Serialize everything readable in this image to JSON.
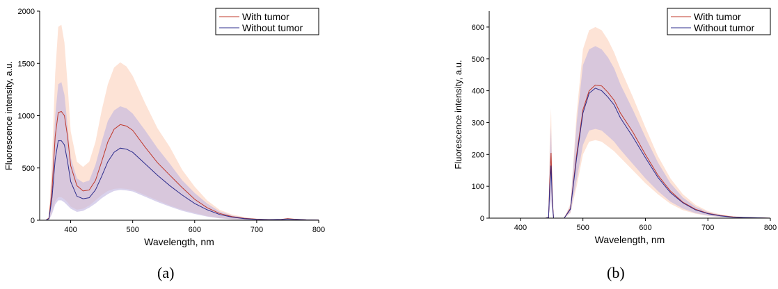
{
  "chart_data": [
    {
      "type": "line",
      "panel_label": "(a)",
      "xlabel": "Wavelength, nm",
      "ylabel": "Fluorescence intensity, a.u.",
      "xlim": [
        350,
        800
      ],
      "ylim": [
        0,
        2000
      ],
      "xticks": [
        400,
        500,
        600,
        700,
        800
      ],
      "yticks": [
        0,
        500,
        1000,
        1500,
        2000
      ],
      "grid": false,
      "legend_position": "top-right",
      "series": [
        {
          "name": "With tumor",
          "color": "#c0392b",
          "band_color": "#fcd9c8",
          "x": [
            350,
            360,
            365,
            370,
            375,
            380,
            385,
            390,
            395,
            400,
            410,
            420,
            430,
            440,
            450,
            460,
            470,
            480,
            490,
            500,
            520,
            540,
            560,
            580,
            600,
            620,
            640,
            660,
            680,
            700,
            720,
            740,
            750,
            760,
            780,
            800
          ],
          "y": [
            0,
            0,
            20,
            300,
            800,
            1030,
            1040,
            1000,
            800,
            520,
            330,
            280,
            290,
            380,
            560,
            750,
            870,
            915,
            900,
            860,
            700,
            550,
            430,
            310,
            200,
            120,
            65,
            35,
            18,
            10,
            6,
            8,
            15,
            10,
            4,
            2
          ],
          "upper": [
            0,
            0,
            40,
            600,
            1400,
            1850,
            1870,
            1700,
            1300,
            850,
            560,
            510,
            560,
            750,
            1050,
            1300,
            1460,
            1510,
            1470,
            1380,
            1120,
            880,
            700,
            480,
            320,
            190,
            100,
            55,
            30,
            15,
            10,
            12,
            22,
            15,
            6,
            3
          ],
          "lower": [
            0,
            0,
            5,
            80,
            180,
            220,
            220,
            200,
            170,
            130,
            100,
            110,
            140,
            190,
            240,
            280,
            300,
            305,
            300,
            290,
            240,
            190,
            140,
            100,
            70,
            40,
            20,
            10,
            5,
            3,
            2,
            3,
            6,
            4,
            1,
            0
          ]
        },
        {
          "name": "Without tumor",
          "color": "#2c2c8c",
          "band_color": "#bfb4e0",
          "x": [
            350,
            360,
            365,
            370,
            375,
            380,
            385,
            390,
            395,
            400,
            410,
            420,
            430,
            440,
            450,
            460,
            470,
            480,
            490,
            500,
            520,
            540,
            560,
            580,
            600,
            620,
            640,
            660,
            680,
            700,
            720,
            740,
            750,
            760,
            780,
            800
          ],
          "y": [
            0,
            0,
            15,
            220,
            580,
            760,
            760,
            720,
            560,
            370,
            230,
            205,
            215,
            290,
            420,
            560,
            650,
            690,
            680,
            650,
            540,
            430,
            330,
            240,
            160,
            100,
            55,
            30,
            15,
            8,
            5,
            7,
            12,
            8,
            3,
            1
          ],
          "upper": [
            0,
            0,
            30,
            420,
            1000,
            1300,
            1320,
            1200,
            900,
            600,
            400,
            360,
            380,
            530,
            750,
            950,
            1050,
            1090,
            1070,
            1020,
            860,
            690,
            540,
            380,
            260,
            160,
            85,
            45,
            24,
            12,
            8,
            10,
            18,
            12,
            5,
            2
          ],
          "lower": [
            0,
            0,
            5,
            60,
            150,
            190,
            190,
            170,
            140,
            110,
            80,
            90,
            120,
            160,
            210,
            250,
            280,
            290,
            285,
            275,
            225,
            175,
            130,
            90,
            60,
            35,
            18,
            9,
            4,
            2,
            1,
            2,
            5,
            3,
            1,
            0
          ]
        }
      ]
    },
    {
      "type": "line",
      "panel_label": "(b)",
      "xlabel": "Wavelength, nm",
      "ylabel": "Fluorescence intensity, a.u.",
      "xlim": [
        350,
        800
      ],
      "ylim": [
        0,
        650
      ],
      "xticks": [
        400,
        500,
        600,
        700,
        800
      ],
      "yticks": [
        0,
        100,
        200,
        300,
        400,
        500,
        600
      ],
      "grid": false,
      "legend_position": "top-right",
      "series": [
        {
          "name": "With tumor",
          "color": "#c0392b",
          "band_color": "#fcd9c8",
          "x": [
            350,
            440,
            445,
            447,
            449,
            451,
            453,
            460,
            470,
            480,
            490,
            500,
            510,
            520,
            530,
            540,
            550,
            560,
            580,
            600,
            620,
            640,
            660,
            680,
            700,
            720,
            740,
            760,
            780,
            800
          ],
          "y": [
            0,
            0,
            2,
            120,
            205,
            60,
            0,
            0,
            0,
            30,
            200,
            340,
            400,
            418,
            415,
            395,
            370,
            330,
            270,
            200,
            135,
            85,
            50,
            28,
            15,
            8,
            4,
            2,
            1,
            0
          ],
          "upper": [
            0,
            0,
            5,
            250,
            345,
            120,
            0,
            0,
            0,
            45,
            330,
            530,
            590,
            600,
            590,
            560,
            520,
            470,
            380,
            285,
            195,
            125,
            75,
            42,
            22,
            12,
            6,
            3,
            1,
            0
          ],
          "lower": [
            0,
            0,
            0,
            40,
            80,
            20,
            0,
            0,
            0,
            15,
            100,
            200,
            240,
            245,
            240,
            225,
            210,
            190,
            150,
            110,
            75,
            45,
            25,
            14,
            7,
            4,
            2,
            1,
            0,
            0
          ]
        },
        {
          "name": "Without tumor",
          "color": "#2c2c8c",
          "band_color": "#bfb4e0",
          "x": [
            350,
            440,
            445,
            447,
            449,
            451,
            453,
            460,
            470,
            480,
            490,
            500,
            510,
            520,
            530,
            540,
            550,
            560,
            580,
            600,
            620,
            640,
            660,
            680,
            700,
            720,
            740,
            760,
            780,
            800
          ],
          "y": [
            0,
            0,
            2,
            100,
            165,
            50,
            0,
            0,
            0,
            28,
            190,
            330,
            392,
            408,
            400,
            380,
            355,
            315,
            255,
            190,
            128,
            80,
            48,
            26,
            14,
            7,
            3,
            2,
            1,
            0
          ],
          "upper": [
            0,
            0,
            4,
            200,
            290,
            100,
            0,
            0,
            0,
            40,
            300,
            480,
            530,
            540,
            530,
            505,
            470,
            420,
            340,
            255,
            175,
            110,
            65,
            36,
            19,
            10,
            5,
            2,
            1,
            0
          ],
          "lower": [
            0,
            0,
            0,
            30,
            60,
            15,
            0,
            0,
            0,
            18,
            120,
            230,
            275,
            280,
            275,
            258,
            240,
            215,
            170,
            125,
            85,
            52,
            30,
            16,
            8,
            4,
            2,
            1,
            0,
            0
          ]
        }
      ]
    }
  ]
}
